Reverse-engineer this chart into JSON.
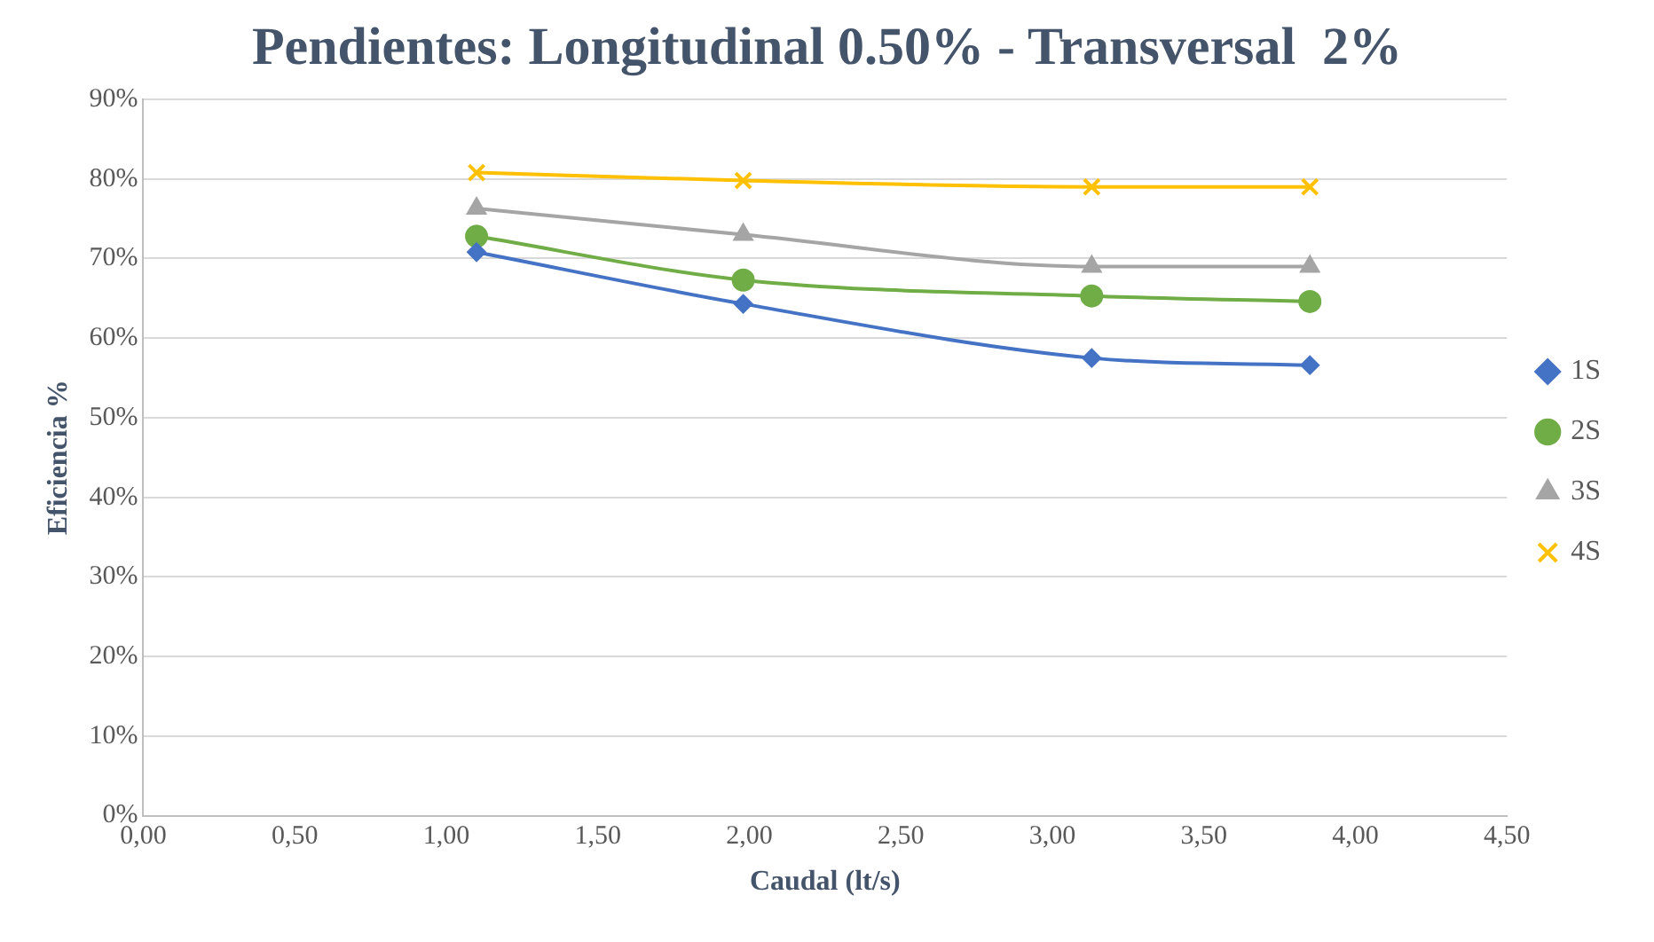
{
  "chart_data": {
    "type": "line",
    "title": "Pendientes: Longitudinal 0.50% - Transversal  2%",
    "xlabel": "Caudal (lt/s)",
    "ylabel": "Eficiencia %",
    "xlim": [
      0,
      4.5
    ],
    "xticks": [
      {
        "value": 0,
        "label": "0,00"
      },
      {
        "value": 0.5,
        "label": "0,50"
      },
      {
        "value": 1,
        "label": "1,00"
      },
      {
        "value": 1.5,
        "label": "1,50"
      },
      {
        "value": 2,
        "label": "2,00"
      },
      {
        "value": 2.5,
        "label": "2,50"
      },
      {
        "value": 3,
        "label": "3,00"
      },
      {
        "value": 3.5,
        "label": "3,50"
      },
      {
        "value": 4,
        "label": "4,00"
      },
      {
        "value": 4.5,
        "label": "4,50"
      }
    ],
    "ylim": [
      0,
      90
    ],
    "yticks": [
      {
        "value": 0,
        "label": "0%"
      },
      {
        "value": 10,
        "label": "10%"
      },
      {
        "value": 20,
        "label": "20%"
      },
      {
        "value": 30,
        "label": "30%"
      },
      {
        "value": 40,
        "label": "40%"
      },
      {
        "value": 50,
        "label": "50%"
      },
      {
        "value": 60,
        "label": "60%"
      },
      {
        "value": 70,
        "label": "70%"
      },
      {
        "value": 80,
        "label": "80%"
      },
      {
        "value": 90,
        "label": "90%"
      }
    ],
    "x": [
      1.1,
      1.98,
      3.13,
      3.85
    ],
    "series": [
      {
        "name": "1S",
        "color": "#4472c4",
        "marker": "diamond",
        "values": [
          70.8,
          64.3,
          57.5,
          56.6
        ]
      },
      {
        "name": "2S",
        "color": "#70ad47",
        "marker": "circle",
        "values": [
          72.8,
          67.3,
          65.3,
          64.6
        ]
      },
      {
        "name": "3S",
        "color": "#a5a5a5",
        "marker": "triangle",
        "values": [
          76.3,
          73,
          69,
          69
        ]
      },
      {
        "name": "4S",
        "color": "#ffc000",
        "marker": "cross",
        "values": [
          80.8,
          79.8,
          79,
          79
        ]
      }
    ],
    "grid": "y",
    "legend": "right"
  }
}
